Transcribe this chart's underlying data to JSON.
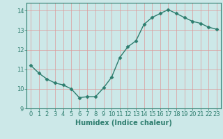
{
  "x": [
    0,
    1,
    2,
    3,
    4,
    5,
    6,
    7,
    8,
    9,
    10,
    11,
    12,
    13,
    14,
    15,
    16,
    17,
    18,
    19,
    20,
    21,
    22,
    23
  ],
  "y": [
    11.2,
    10.8,
    10.5,
    10.3,
    10.2,
    10.0,
    9.55,
    9.6,
    9.6,
    10.05,
    10.6,
    11.6,
    12.15,
    12.45,
    13.3,
    13.65,
    13.85,
    14.05,
    13.85,
    13.65,
    13.45,
    13.35,
    13.15,
    13.05
  ],
  "line_color": "#2d7d6e",
  "marker": "D",
  "marker_size": 2.5,
  "bg_color": "#cce8e8",
  "grid_color": "#aacccc",
  "xlabel": "Humidex (Indice chaleur)",
  "ylabel": "",
  "xlim": [
    -0.5,
    23.5
  ],
  "ylim": [
    9.0,
    14.4
  ],
  "yticks": [
    9,
    10,
    11,
    12,
    13,
    14
  ],
  "xticks": [
    0,
    1,
    2,
    3,
    4,
    5,
    6,
    7,
    8,
    9,
    10,
    11,
    12,
    13,
    14,
    15,
    16,
    17,
    18,
    19,
    20,
    21,
    22,
    23
  ],
  "tick_color": "#2d7d6e",
  "label_color": "#2d7d6e",
  "xlabel_fontsize": 7,
  "tick_fontsize": 6,
  "linewidth": 1.0
}
